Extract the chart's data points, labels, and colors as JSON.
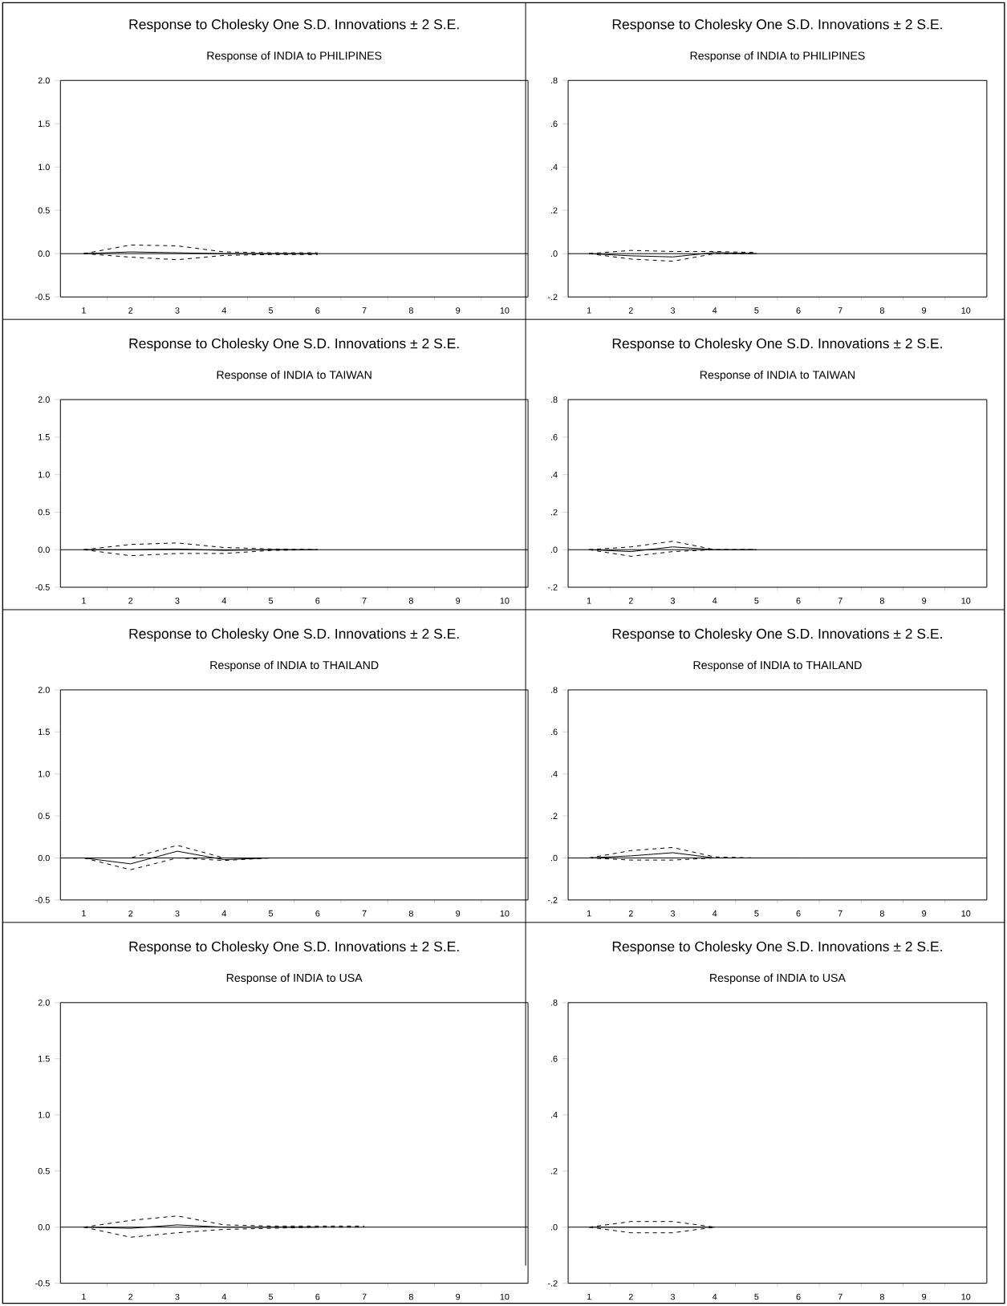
{
  "chart_data": [
    {
      "type": "line",
      "title": "Response to Cholesky One S.D. Innovations ± 2 S.E.",
      "subtitle": "Response of INDIA to PHILIPINES",
      "categories": [
        "1",
        "2",
        "3",
        "4",
        "5",
        "6",
        "7",
        "8",
        "9",
        "10"
      ],
      "series": [
        {
          "color": "#000000",
          "line_style": "solid",
          "values": [
            0,
            0.02,
            0.01,
            0,
            0,
            0,
            null,
            null,
            null,
            null
          ]
        },
        {
          "color": "#000000",
          "line_style": "dashed",
          "values": [
            0,
            0.1,
            0.09,
            0.02,
            0.01,
            0.01,
            null,
            null,
            null,
            null
          ]
        },
        {
          "color": "#000000",
          "line_style": "dashed",
          "values": [
            0,
            -0.04,
            -0.07,
            -0.02,
            -0.01,
            -0.01,
            null,
            null,
            null,
            null
          ]
        }
      ],
      "ylim": [
        -0.5,
        2.0
      ],
      "yticks": [
        {
          "value": -0.5,
          "label": "-0.5"
        },
        {
          "value": 0,
          "label": "0.0"
        },
        {
          "value": 0.5,
          "label": "0.5"
        },
        {
          "value": 1.0,
          "label": "1.0"
        },
        {
          "value": 1.5,
          "label": "1.5"
        },
        {
          "value": 2.0,
          "label": "2.0"
        }
      ],
      "ref_lines": [
        {
          "axis": "y",
          "value": 0
        }
      ]
    },
    {
      "type": "line",
      "title": "Response to Cholesky One S.D. Innovations ± 2 S.E.",
      "subtitle": "Response of INDIA to PHILIPINES",
      "categories": [
        "1",
        "2",
        "3",
        "4",
        "5",
        "6",
        "7",
        "8",
        "9",
        "10"
      ],
      "series": [
        {
          "color": "#000000",
          "line_style": "solid",
          "values": [
            0,
            -0.01,
            -0.015,
            0.005,
            0,
            null,
            null,
            null,
            null,
            null
          ]
        },
        {
          "color": "#000000",
          "line_style": "dashed",
          "values": [
            0,
            0.015,
            0.01,
            0.01,
            0.005,
            null,
            null,
            null,
            null,
            null
          ]
        },
        {
          "color": "#000000",
          "line_style": "dashed",
          "values": [
            0,
            -0.025,
            -0.035,
            0,
            0,
            null,
            null,
            null,
            null,
            null
          ]
        }
      ],
      "ylim": [
        -0.2,
        0.8
      ],
      "yticks": [
        {
          "value": -0.2,
          "label": "-.2"
        },
        {
          "value": 0,
          "label": ".0"
        },
        {
          "value": 0.2,
          "label": ".2"
        },
        {
          "value": 0.4,
          "label": ".4"
        },
        {
          "value": 0.6,
          "label": ".6"
        },
        {
          "value": 0.8,
          "label": ".8"
        }
      ],
      "ref_lines": [
        {
          "axis": "y",
          "value": 0
        }
      ]
    },
    {
      "type": "line",
      "title": "Response to Cholesky One S.D. Innovations ± 2 S.E.",
      "subtitle": "Response of INDIA to TAIWAN",
      "categories": [
        "1",
        "2",
        "3",
        "4",
        "5",
        "6",
        "7",
        "8",
        "9",
        "10"
      ],
      "series": [
        {
          "color": "#000000",
          "line_style": "solid",
          "values": [
            0,
            0,
            0.01,
            -0.01,
            0,
            0,
            null,
            null,
            null,
            null
          ]
        },
        {
          "color": "#000000",
          "line_style": "dashed",
          "values": [
            0,
            0.07,
            0.09,
            0.03,
            0.01,
            0,
            null,
            null,
            null,
            null
          ]
        },
        {
          "color": "#000000",
          "line_style": "dashed",
          "values": [
            0,
            -0.08,
            -0.05,
            -0.05,
            -0.01,
            0,
            null,
            null,
            null,
            null
          ]
        }
      ],
      "ylim": [
        -0.5,
        2.0
      ],
      "yticks": [
        {
          "value": -0.5,
          "label": "-0.5"
        },
        {
          "value": 0,
          "label": "0.0"
        },
        {
          "value": 0.5,
          "label": "0.5"
        },
        {
          "value": 1.0,
          "label": "1.0"
        },
        {
          "value": 1.5,
          "label": "1.5"
        },
        {
          "value": 2.0,
          "label": "2.0"
        }
      ],
      "ref_lines": [
        {
          "axis": "y",
          "value": 0
        }
      ]
    },
    {
      "type": "line",
      "title": "Response to Cholesky One S.D. Innovations ± 2 S.E.",
      "subtitle": "Response of INDIA to TAIWAN",
      "categories": [
        "1",
        "2",
        "3",
        "4",
        "5",
        "6",
        "7",
        "8",
        "9",
        "10"
      ],
      "series": [
        {
          "color": "#000000",
          "line_style": "solid",
          "values": [
            0,
            -0.01,
            0.015,
            0,
            0,
            null,
            null,
            null,
            null,
            null
          ]
        },
        {
          "color": "#000000",
          "line_style": "dashed",
          "values": [
            0,
            0.015,
            0.045,
            0,
            0,
            null,
            null,
            null,
            null,
            null
          ]
        },
        {
          "color": "#000000",
          "line_style": "dashed",
          "values": [
            0,
            -0.035,
            -0.01,
            0,
            0,
            null,
            null,
            null,
            null,
            null
          ]
        }
      ],
      "ylim": [
        -0.2,
        0.8
      ],
      "yticks": [
        {
          "value": -0.2,
          "label": "-.2"
        },
        {
          "value": 0,
          "label": ".0"
        },
        {
          "value": 0.2,
          "label": ".2"
        },
        {
          "value": 0.4,
          "label": ".4"
        },
        {
          "value": 0.6,
          "label": ".6"
        },
        {
          "value": 0.8,
          "label": ".8"
        }
      ],
      "ref_lines": [
        {
          "axis": "y",
          "value": 0
        }
      ]
    },
    {
      "type": "line",
      "title": "Response to Cholesky One S.D. Innovations ± 2 S.E.",
      "subtitle": "Response of INDIA to THAILAND",
      "categories": [
        "1",
        "2",
        "3",
        "4",
        "5",
        "6",
        "7",
        "8",
        "9",
        "10"
      ],
      "series": [
        {
          "color": "#000000",
          "line_style": "solid",
          "values": [
            0,
            -0.07,
            0.08,
            -0.02,
            0,
            null,
            null,
            null,
            null,
            null
          ]
        },
        {
          "color": "#000000",
          "line_style": "dashed",
          "values": [
            0,
            0,
            0.15,
            0,
            0,
            null,
            null,
            null,
            null,
            null
          ]
        },
        {
          "color": "#000000",
          "line_style": "dashed",
          "values": [
            0,
            -0.14,
            0,
            -0.03,
            0,
            null,
            null,
            null,
            null,
            null
          ]
        }
      ],
      "ylim": [
        -0.5,
        2.0
      ],
      "yticks": [
        {
          "value": -0.5,
          "label": "-0.5"
        },
        {
          "value": 0,
          "label": "0.0"
        },
        {
          "value": 0.5,
          "label": "0.5"
        },
        {
          "value": 1.0,
          "label": "1.0"
        },
        {
          "value": 1.5,
          "label": "1.5"
        },
        {
          "value": 2.0,
          "label": "2.0"
        }
      ],
      "ref_lines": [
        {
          "axis": "y",
          "value": 0
        }
      ]
    },
    {
      "type": "line",
      "title": "Response to Cholesky One S.D. Innovations ± 2 S.E.",
      "subtitle": "Response of INDIA to THAILAND",
      "categories": [
        "1",
        "2",
        "3",
        "4",
        "5",
        "6",
        "7",
        "8",
        "9",
        "10"
      ],
      "series": [
        {
          "color": "#000000",
          "line_style": "solid",
          "values": [
            0,
            0.01,
            0.025,
            0,
            0,
            0,
            null,
            null,
            null,
            null
          ]
        },
        {
          "color": "#000000",
          "line_style": "dashed",
          "values": [
            0,
            0.035,
            0.05,
            0.005,
            0,
            0,
            null,
            null,
            null,
            null
          ]
        },
        {
          "color": "#000000",
          "line_style": "dashed",
          "values": [
            0,
            -0.01,
            -0.01,
            0,
            0,
            0,
            null,
            null,
            null,
            null
          ]
        }
      ],
      "ylim": [
        -0.2,
        0.8
      ],
      "yticks": [
        {
          "value": -0.2,
          "label": "-.2"
        },
        {
          "value": 0,
          "label": ".0"
        },
        {
          "value": 0.2,
          "label": ".2"
        },
        {
          "value": 0.4,
          "label": ".4"
        },
        {
          "value": 0.6,
          "label": ".6"
        },
        {
          "value": 0.8,
          "label": ".8"
        }
      ],
      "ref_lines": [
        {
          "axis": "y",
          "value": 0
        }
      ]
    },
    {
      "type": "line",
      "title": "Response to Cholesky One S.D. Innovations ± 2 S.E.",
      "subtitle": "Response of INDIA to USA",
      "categories": [
        "1",
        "2",
        "3",
        "4",
        "5",
        "6",
        "7",
        "8",
        "9",
        "10"
      ],
      "series": [
        {
          "color": "#000000",
          "line_style": "solid",
          "values": [
            0,
            -0.01,
            0.02,
            0,
            0,
            0,
            null,
            null,
            null,
            null
          ]
        },
        {
          "color": "#000000",
          "line_style": "dashed",
          "values": [
            0,
            0.06,
            0.1,
            0.02,
            0.01,
            0.01,
            0.01,
            null,
            null,
            null
          ]
        },
        {
          "color": "#000000",
          "line_style": "dashed",
          "values": [
            0,
            -0.09,
            -0.05,
            -0.02,
            -0.01,
            0,
            0,
            null,
            null,
            null
          ]
        }
      ],
      "ylim": [
        -0.5,
        2.0
      ],
      "yticks": [
        {
          "value": -0.5,
          "label": "-0.5"
        },
        {
          "value": 0,
          "label": "0.0"
        },
        {
          "value": 0.5,
          "label": "0.5"
        },
        {
          "value": 1.0,
          "label": "1.0"
        },
        {
          "value": 1.5,
          "label": "1.5"
        },
        {
          "value": 2.0,
          "label": "2.0"
        }
      ],
      "ref_lines": [
        {
          "axis": "y",
          "value": 0
        }
      ]
    },
    {
      "type": "line",
      "title": "Response to Cholesky One S.D. Innovations ± 2 S.E.",
      "subtitle": "Response of INDIA to USA",
      "categories": [
        "1",
        "2",
        "3",
        "4",
        "5",
        "6",
        "7",
        "8",
        "9",
        "10"
      ],
      "series": [
        {
          "color": "#000000",
          "line_style": "solid",
          "values": [
            0,
            0,
            0,
            0,
            null,
            null,
            null,
            null,
            null,
            null
          ]
        },
        {
          "color": "#000000",
          "line_style": "dashed",
          "values": [
            0,
            0.02,
            0.02,
            0,
            null,
            null,
            null,
            null,
            null,
            null
          ]
        },
        {
          "color": "#000000",
          "line_style": "dashed",
          "values": [
            0,
            -0.02,
            -0.02,
            0,
            null,
            null,
            null,
            null,
            null,
            null
          ]
        }
      ],
      "ylim": [
        -0.2,
        0.8
      ],
      "yticks": [
        {
          "value": -0.2,
          "label": "-.2"
        },
        {
          "value": 0,
          "label": ".0"
        },
        {
          "value": 0.2,
          "label": ".2"
        },
        {
          "value": 0.4,
          "label": ".4"
        },
        {
          "value": 0.6,
          "label": ".6"
        },
        {
          "value": 0.8,
          "label": ".8"
        }
      ],
      "ref_lines": [
        {
          "axis": "y",
          "value": 0
        }
      ]
    }
  ]
}
